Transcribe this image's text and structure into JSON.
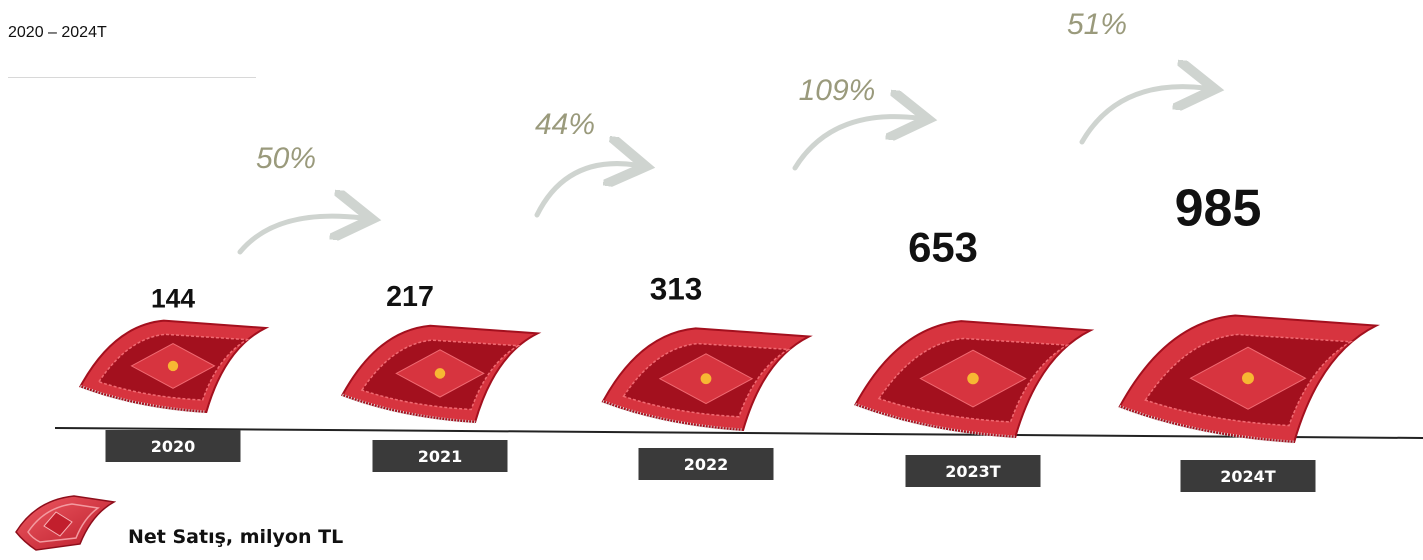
{
  "subtitle": "2020 – 2024T",
  "legend": {
    "label": "Net Satış, milyon TL",
    "icon": "carpet-icon"
  },
  "colors": {
    "carpet_main": "#d7343f",
    "carpet_dark": "#a3101e",
    "carpet_light": "#f06a72",
    "growth_text": "#9a9a7c",
    "arrow": "#cfd4d0",
    "year_box": "#3a3a3a",
    "value_text": "#111111"
  },
  "chart_data": {
    "type": "bar",
    "title": "",
    "categories": [
      "2020",
      "2021",
      "2022",
      "2023T",
      "2024T"
    ],
    "values": [
      144,
      217,
      313,
      653,
      985
    ],
    "growth": [
      "50%",
      "44%",
      "109%",
      "51%"
    ],
    "xlabel": "",
    "ylabel": ""
  }
}
